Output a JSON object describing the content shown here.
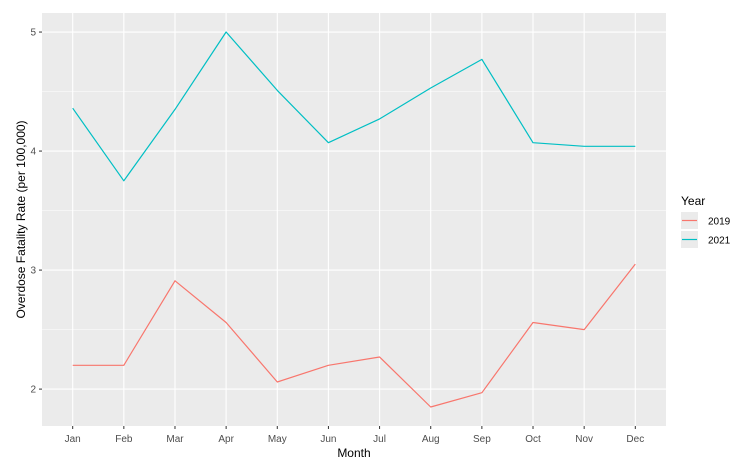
{
  "chart_data": {
    "type": "line",
    "title": "",
    "xlabel": "Month",
    "ylabel": "Overdose Fatality Rate (per 100,000)",
    "categories": [
      "Jan",
      "Feb",
      "Mar",
      "Apr",
      "May",
      "Jun",
      "Jul",
      "Aug",
      "Sep",
      "Oct",
      "Nov",
      "Dec"
    ],
    "yticks": [
      2,
      3,
      4,
      5
    ],
    "ylim": [
      1.69,
      5.16
    ],
    "grid": true,
    "legend": {
      "title": "Year",
      "position": "right"
    },
    "series": [
      {
        "name": "2019",
        "color": "#F8766D",
        "values": [
          2.2,
          2.2,
          2.91,
          2.56,
          2.06,
          2.2,
          2.27,
          1.85,
          1.97,
          2.56,
          2.5,
          3.05
        ]
      },
      {
        "name": "2021",
        "color": "#00BFC4",
        "values": [
          4.36,
          3.75,
          4.35,
          5.0,
          4.51,
          4.07,
          4.27,
          4.53,
          4.77,
          4.07,
          4.04,
          4.04
        ]
      }
    ]
  }
}
